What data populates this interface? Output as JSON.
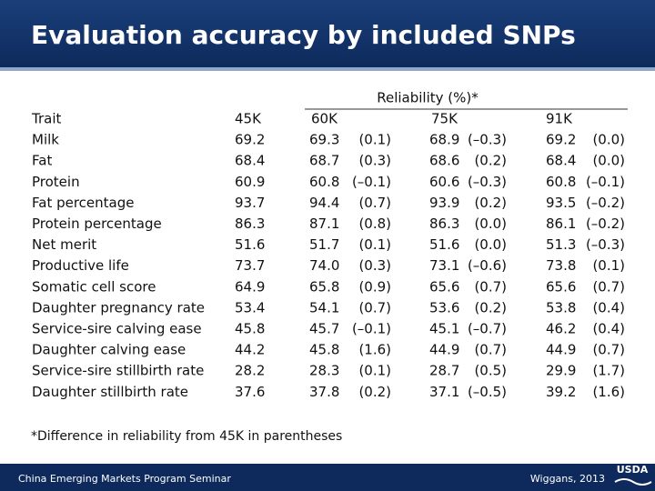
{
  "header": {
    "title": "Evaluation accuracy by included SNPs"
  },
  "table": {
    "group_header": "Reliability (%)*",
    "columns": [
      "Trait",
      "45K",
      "60K",
      "75K",
      "91K"
    ],
    "rows": [
      [
        "Milk",
        "69.2",
        "69.3",
        "(0.1)",
        "68.9",
        "(–0.3)",
        "69.2",
        "(0.0)"
      ],
      [
        "Fat",
        "68.4",
        "68.7",
        "(0.3)",
        "68.6",
        "(0.2)",
        "68.4",
        "(0.0)"
      ],
      [
        "Protein",
        "60.9",
        "60.8",
        "(–0.1)",
        "60.6",
        "(–0.3)",
        "60.8",
        "(–0.1)"
      ],
      [
        "Fat percentage",
        "93.7",
        "94.4",
        "(0.7)",
        "93.9",
        "(0.2)",
        "93.5",
        "(–0.2)"
      ],
      [
        "Protein percentage",
        "86.3",
        "87.1",
        "(0.8)",
        "86.3",
        "(0.0)",
        "86.1",
        "(–0.2)"
      ],
      [
        "Net merit",
        "51.6",
        "51.7",
        "(0.1)",
        "51.6",
        "(0.0)",
        "51.3",
        "(–0.3)"
      ],
      [
        "Productive life",
        "73.7",
        "74.0",
        "(0.3)",
        "73.1",
        "(–0.6)",
        "73.8",
        "(0.1)"
      ],
      [
        "Somatic cell score",
        "64.9",
        "65.8",
        "(0.9)",
        "65.6",
        "(0.7)",
        "65.6",
        "(0.7)"
      ],
      [
        "Daughter pregnancy rate",
        "53.4",
        "54.1",
        "(0.7)",
        "53.6",
        "(0.2)",
        "53.8",
        "(0.4)"
      ],
      [
        "Service-sire calving ease",
        "45.8",
        "45.7",
        "(–0.1)",
        "45.1",
        "(–0.7)",
        "46.2",
        "(0.4)"
      ],
      [
        "Daughter calving ease",
        "44.2",
        "45.8",
        "(1.6)",
        "44.9",
        "(0.7)",
        "44.9",
        "(0.7)"
      ],
      [
        "Service-sire stillbirth rate",
        "28.2",
        "28.3",
        "(0.1)",
        "28.7",
        "(0.5)",
        "29.9",
        "(1.7)"
      ],
      [
        "Daughter stillbirth rate",
        "37.6",
        "37.8",
        "(0.2)",
        "37.1",
        "(–0.5)",
        "39.2",
        "(1.6)"
      ]
    ],
    "footnote": "*Difference in reliability from 45K in parentheses"
  },
  "footer": {
    "left": "China Emerging Markets Program Seminar",
    "right": "Wiggans, 2013",
    "logo": "USDA"
  }
}
